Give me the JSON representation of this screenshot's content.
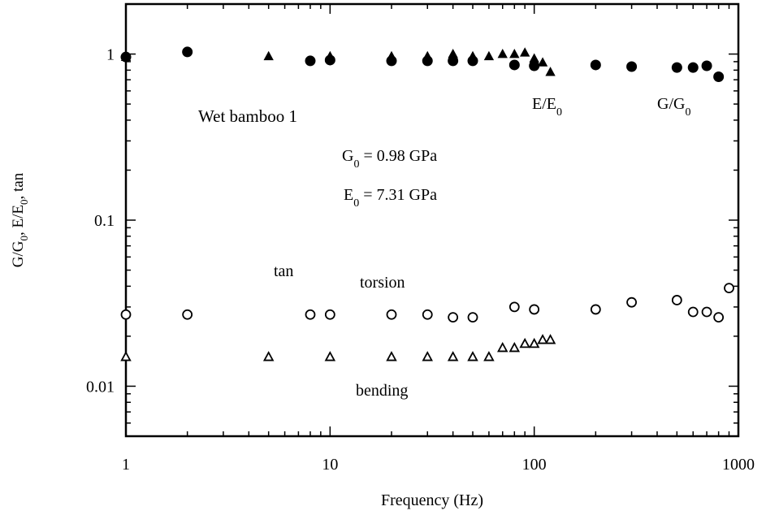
{
  "chart_data": {
    "type": "scatter",
    "x_scale": "log",
    "y_scale": "log",
    "xlim": [
      1,
      1000
    ],
    "ylim": [
      0.005,
      2
    ],
    "grid": false,
    "xlabel": "Frequency (Hz)",
    "ylabel": {
      "p1": "G/G",
      "s1": "0",
      "p2": ", E/E",
      "s2": "0",
      "p3": ", tan"
    },
    "x_ticks": [
      {
        "value": 1,
        "label": "1"
      },
      {
        "value": 10,
        "label": "10"
      },
      {
        "value": 100,
        "label": "100"
      },
      {
        "value": 1000,
        "label": "1000"
      }
    ],
    "y_ticks": [
      {
        "value": 1,
        "label": "1"
      },
      {
        "value": 0.1,
        "label": "0.1"
      },
      {
        "value": 0.01,
        "label": "0.01"
      }
    ],
    "annotations": {
      "specimen": "Wet bamboo 1",
      "g0": {
        "main": "G",
        "sub": "0",
        "rest": " = 0.98 GPa"
      },
      "e0": {
        "main": "E",
        "sub": "0",
        "rest": " = 7.31 GPa"
      },
      "e_ratio": {
        "main": "E/E",
        "sub": "0"
      },
      "g_ratio": {
        "main": "G/G",
        "sub": "0"
      },
      "tan": "tan",
      "torsion": "torsion",
      "bending": "bending"
    },
    "series": [
      {
        "marker": "filled-circle",
        "points": [
          [
            1,
            0.96
          ],
          [
            2,
            1.03
          ],
          [
            8,
            0.91
          ],
          [
            10,
            0.92
          ],
          [
            20,
            0.91
          ],
          [
            30,
            0.91
          ],
          [
            40,
            0.91
          ],
          [
            50,
            0.91
          ],
          [
            80,
            0.86
          ],
          [
            100,
            0.85
          ],
          [
            200,
            0.86
          ],
          [
            300,
            0.84
          ],
          [
            500,
            0.83
          ],
          [
            600,
            0.83
          ],
          [
            700,
            0.85
          ],
          [
            800,
            0.73
          ]
        ]
      },
      {
        "marker": "filled-triangle",
        "points": [
          [
            1,
            0.96
          ],
          [
            5,
            0.97
          ],
          [
            10,
            0.97
          ],
          [
            20,
            0.97
          ],
          [
            30,
            0.97
          ],
          [
            40,
            1.0
          ],
          [
            50,
            0.97
          ],
          [
            60,
            0.97
          ],
          [
            70,
            1.0
          ],
          [
            80,
            1.0
          ],
          [
            90,
            1.02
          ],
          [
            100,
            0.94
          ],
          [
            110,
            0.89
          ],
          [
            120,
            0.78
          ]
        ]
      },
      {
        "marker": "open-circle",
        "points": [
          [
            1,
            0.027
          ],
          [
            2,
            0.027
          ],
          [
            8,
            0.027
          ],
          [
            10,
            0.027
          ],
          [
            20,
            0.027
          ],
          [
            30,
            0.027
          ],
          [
            40,
            0.026
          ],
          [
            50,
            0.026
          ],
          [
            80,
            0.03
          ],
          [
            100,
            0.029
          ],
          [
            200,
            0.029
          ],
          [
            300,
            0.032
          ],
          [
            500,
            0.033
          ],
          [
            600,
            0.028
          ],
          [
            700,
            0.028
          ],
          [
            800,
            0.026
          ],
          [
            900,
            0.039
          ]
        ]
      },
      {
        "marker": "open-triangle",
        "points": [
          [
            1,
            0.015
          ],
          [
            5,
            0.015
          ],
          [
            10,
            0.015
          ],
          [
            20,
            0.015
          ],
          [
            30,
            0.015
          ],
          [
            40,
            0.015
          ],
          [
            50,
            0.015
          ],
          [
            60,
            0.015
          ],
          [
            70,
            0.017
          ],
          [
            80,
            0.017
          ],
          [
            90,
            0.018
          ],
          [
            100,
            0.018
          ],
          [
            110,
            0.019
          ],
          [
            120,
            0.019
          ]
        ]
      }
    ]
  }
}
